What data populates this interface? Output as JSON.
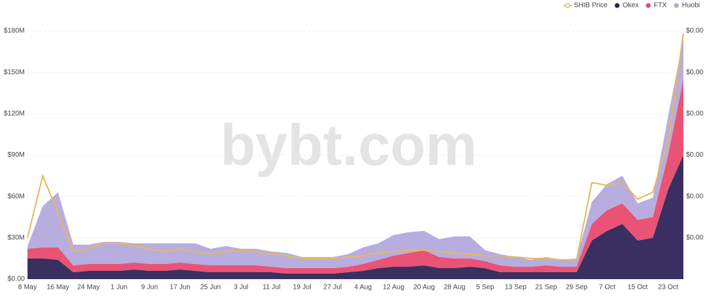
{
  "chart_data": {
    "type": "stacked-area",
    "watermark": "bybt.com",
    "categories": [
      "8 May",
      null,
      "16 May",
      null,
      "24 May",
      null,
      "1 Jun",
      null,
      "9 Jun",
      null,
      "17 Jun",
      null,
      "25 Jun",
      null,
      "3 Jul",
      null,
      "11 Jul",
      null,
      "19 Jul",
      null,
      "27 Jul",
      null,
      "4 Aug",
      null,
      "12 Aug",
      null,
      "20 Aug",
      null,
      "28 Aug",
      null,
      "5 Sep",
      null,
      "13 Sep",
      null,
      "21 Sep",
      null,
      "29 Sep",
      null,
      "7 Oct",
      null,
      "15 Oct",
      null,
      "23 Oct",
      null
    ],
    "series": [
      {
        "name": "SHIB Price",
        "color": "#e6b85c",
        "axis": "y2",
        "values": [
          1.5e-05,
          3.75e-05,
          2.4e-05,
          1e-05,
          1.1e-05,
          1.3e-05,
          1.3e-05,
          1.2e-05,
          1.1e-05,
          1e-05,
          1.1e-05,
          1e-05,
          9e-06,
          1e-05,
          1.05e-05,
          1e-05,
          9e-06,
          8.5e-06,
          7.5e-06,
          7.5e-06,
          7.5e-06,
          8e-06,
          8.5e-06,
          9.5e-06,
          1e-05,
          1.05e-05,
          1.05e-05,
          1e-05,
          9.5e-06,
          9e-06,
          8.5e-06,
          8.5e-06,
          8e-06,
          7.5e-06,
          7.5e-06,
          7e-06,
          7e-06,
          3.5e-05,
          3.4e-05,
          3.5e-05,
          2.9e-05,
          3.15e-05,
          5e-05,
          8.9e-05
        ]
      },
      {
        "name": "Okex",
        "color": "#2e2457",
        "values": [
          15,
          15,
          14,
          5,
          6,
          6,
          6,
          7,
          6,
          6,
          7,
          6,
          5,
          5,
          5,
          5,
          5,
          4,
          4,
          4,
          4,
          5,
          6,
          8,
          9,
          9,
          10,
          8,
          8,
          9,
          8,
          5,
          5,
          5,
          5,
          5,
          5,
          28,
          35,
          40,
          28,
          30,
          65,
          90
        ]
      },
      {
        "name": "FTX",
        "color": "#e84a6f",
        "values": [
          7,
          8,
          9,
          5,
          5,
          5,
          5,
          5,
          5,
          5,
          5,
          5,
          5,
          5,
          5,
          5,
          4,
          4,
          4,
          4,
          4,
          4,
          5,
          6,
          8,
          10,
          11,
          8,
          7,
          6,
          5,
          5,
          4,
          4,
          5,
          4,
          4,
          12,
          15,
          15,
          15,
          15,
          25,
          55
        ]
      },
      {
        "name": "Huobi",
        "color": "#b3a9dc",
        "values": [
          2,
          30,
          40,
          15,
          14,
          16,
          16,
          14,
          15,
          15,
          14,
          15,
          12,
          14,
          12,
          12,
          11,
          11,
          8,
          8,
          8,
          9,
          12,
          12,
          15,
          15,
          14,
          13,
          16,
          16,
          8,
          8,
          7,
          5,
          6,
          5,
          6,
          16,
          19,
          20,
          12,
          14,
          28,
          30
        ]
      }
    ],
    "ylim": [
      0,
      180
    ],
    "yticks": [
      {
        "value": 0,
        "label": "$0.00"
      },
      {
        "value": 30,
        "label": "$30M"
      },
      {
        "value": 60,
        "label": "$60M"
      },
      {
        "value": 90,
        "label": "$90M"
      },
      {
        "value": 120,
        "label": "$120M"
      },
      {
        "value": 150,
        "label": "$150M"
      },
      {
        "value": 180,
        "label": "$180M"
      }
    ],
    "y2lim": [
      0,
      9e-05
    ],
    "y2ticks": [
      {
        "value": 1.5e-05,
        "label": "$0.00"
      },
      {
        "value": 3e-05,
        "label": "$0.00"
      },
      {
        "value": 4.5e-05,
        "label": "$0.00"
      },
      {
        "value": 6e-05,
        "label": "$0.00"
      },
      {
        "value": 7.5e-05,
        "label": "$0.00"
      },
      {
        "value": 9e-05,
        "label": "$0.00"
      }
    ],
    "grid": true,
    "legend": "top-right"
  }
}
